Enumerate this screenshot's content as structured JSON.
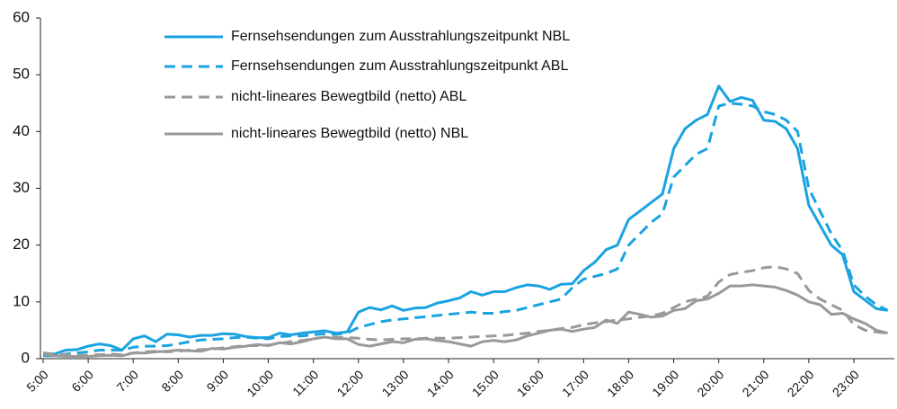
{
  "chart_data": {
    "type": "line",
    "x": [
      5,
      5.25,
      5.5,
      5.75,
      6,
      6.25,
      6.5,
      6.75,
      7,
      7.25,
      7.5,
      7.75,
      8,
      8.25,
      8.5,
      8.75,
      9,
      9.25,
      9.5,
      9.75,
      10,
      10.25,
      10.5,
      10.75,
      11,
      11.25,
      11.5,
      11.75,
      12,
      12.25,
      12.5,
      12.75,
      13,
      13.25,
      13.5,
      13.75,
      14,
      14.25,
      14.5,
      14.75,
      15,
      15.25,
      15.5,
      15.75,
      16,
      16.25,
      16.5,
      16.75,
      17,
      17.25,
      17.5,
      17.75,
      18,
      18.25,
      18.5,
      18.75,
      19,
      19.25,
      19.5,
      19.75,
      20,
      20.25,
      20.5,
      20.75,
      21,
      21.25,
      21.5,
      21.75,
      22,
      22.25,
      22.5,
      22.75,
      23,
      23.25,
      23.5,
      23.75
    ],
    "xlim": [
      5,
      23.9
    ],
    "xticks": [
      {
        "value": 5,
        "label": "5:00"
      },
      {
        "value": 6,
        "label": "6:00"
      },
      {
        "value": 7,
        "label": "7:00"
      },
      {
        "value": 8,
        "label": "8:00"
      },
      {
        "value": 9,
        "label": "9:00"
      },
      {
        "value": 10,
        "label": "10:00"
      },
      {
        "value": 11,
        "label": "11:00"
      },
      {
        "value": 12,
        "label": "12:00"
      },
      {
        "value": 13,
        "label": "13:00"
      },
      {
        "value": 14,
        "label": "14:00"
      },
      {
        "value": 15,
        "label": "15:00"
      },
      {
        "value": 16,
        "label": "16:00"
      },
      {
        "value": 17,
        "label": "17:00"
      },
      {
        "value": 18,
        "label": "18:00"
      },
      {
        "value": 19,
        "label": "19:00"
      },
      {
        "value": 20,
        "label": "20:00"
      },
      {
        "value": 21,
        "label": "21:00"
      },
      {
        "value": 22,
        "label": "22:00"
      },
      {
        "value": 23,
        "label": "23:00"
      }
    ],
    "ylim": [
      0,
      60
    ],
    "yticks": [
      0,
      10,
      20,
      30,
      40,
      50,
      60
    ],
    "series": [
      {
        "name": "Fernsehsendungen zum Ausstrahlungszeitpunkt NBL",
        "color": "#1aa3e0",
        "style": "solid",
        "values": [
          1,
          0.8,
          1.5,
          1.6,
          2.2,
          2.6,
          2.3,
          1.5,
          3.5,
          4,
          3,
          4.3,
          4.2,
          3.8,
          4.1,
          4.1,
          4.4,
          4.3,
          3.9,
          3.7,
          3.7,
          4.5,
          4.2,
          4.5,
          4.7,
          4.9,
          4.5,
          4.7,
          8.2,
          9,
          8.6,
          9.3,
          8.5,
          8.9,
          9,
          9.8,
          10.2,
          10.7,
          11.8,
          11.2,
          11.8,
          11.8,
          12.5,
          13,
          12.8,
          12.2,
          13.1,
          13.2,
          15.5,
          17,
          19.2,
          20,
          24.5,
          26,
          27.5,
          29,
          37,
          40.5,
          42,
          43,
          48,
          45.3,
          46,
          45.5,
          42,
          41.8,
          40.5,
          37,
          27,
          23.5,
          20,
          18.3,
          11.8,
          10.3,
          8.8,
          8.5
        ]
      },
      {
        "name": "Fernsehsendungen zum Ausstrahlungszeitpunkt ABL",
        "color": "#1aa3e0",
        "style": "dashed",
        "values": [
          0.5,
          0.5,
          0.8,
          1.0,
          1.2,
          1.5,
          1.5,
          1.5,
          2.0,
          2.2,
          2.2,
          2.3,
          2.6,
          3.0,
          3.3,
          3.4,
          3.5,
          3.7,
          3.8,
          3.6,
          3.5,
          3.9,
          4.0,
          4.0,
          4.2,
          4.4,
          4.3,
          4.5,
          5.5,
          6.0,
          6.5,
          6.8,
          7.0,
          7.2,
          7.4,
          7.6,
          7.8,
          8.0,
          8.2,
          8.0,
          8.0,
          8.3,
          8.5,
          9.0,
          9.5,
          10.0,
          10.5,
          12.5,
          14,
          14.5,
          15,
          15.8,
          20,
          22,
          24,
          25.5,
          32,
          34,
          36,
          37,
          44.5,
          45,
          44.8,
          44.5,
          43.5,
          43,
          42,
          40,
          30,
          26,
          22,
          19,
          13,
          11,
          9.5,
          8.5
        ]
      },
      {
        "name": "nicht-lineares Bewegtbild (netto) ABL",
        "color": "#999999",
        "style": "dashed",
        "values": [
          1.0,
          0.8,
          0.7,
          0.6,
          0.6,
          0.7,
          0.8,
          0.7,
          1.0,
          1.2,
          1.3,
          1.2,
          1.3,
          1.5,
          1.6,
          1.7,
          1.9,
          2.1,
          2.3,
          2.3,
          2.4,
          2.7,
          3.0,
          3.2,
          3.5,
          3.8,
          3.8,
          3.7,
          3.6,
          3.4,
          3.3,
          3.4,
          3.5,
          3.5,
          3.6,
          3.6,
          3.6,
          3.7,
          3.8,
          3.9,
          4.0,
          4.1,
          4.3,
          4.5,
          4.8,
          5.0,
          5.3,
          5.5,
          6.0,
          6.3,
          6.5,
          6.8,
          7.0,
          7.3,
          7.5,
          8.0,
          9.0,
          10.0,
          10.5,
          11,
          13.5,
          14.8,
          15.2,
          15.5,
          16,
          16.2,
          15.8,
          15,
          12,
          10.5,
          9.5,
          8.5,
          6,
          5,
          4.7,
          4.5
        ]
      },
      {
        "name": "nicht-lineares Bewegtbild (netto) NBL",
        "color": "#999999",
        "style": "solid",
        "values": [
          0.8,
          0.5,
          0.4,
          0.4,
          0.4,
          0.5,
          0.6,
          0.5,
          1.0,
          1.0,
          1.2,
          1.3,
          1.5,
          1.4,
          1.3,
          1.8,
          1.7,
          2.0,
          2.2,
          2.5,
          2.3,
          2.8,
          2.6,
          3.0,
          3.5,
          3.8,
          3.5,
          3.5,
          2.5,
          2.2,
          2.6,
          3.0,
          2.8,
          3.4,
          3.5,
          3.2,
          3.0,
          2.6,
          2.2,
          3.0,
          3.2,
          3.0,
          3.3,
          4.0,
          4.5,
          5.0,
          5.2,
          4.8,
          5.2,
          5.5,
          6.8,
          6.2,
          8.2,
          7.8,
          7.3,
          7.5,
          8.5,
          8.8,
          10.2,
          10.5,
          11.5,
          12.8,
          12.8,
          13.0,
          12.8,
          12.6,
          12,
          11.2,
          10,
          9.5,
          7.8,
          8.0,
          7.0,
          6.2,
          5.0,
          4.5
        ]
      }
    ]
  }
}
